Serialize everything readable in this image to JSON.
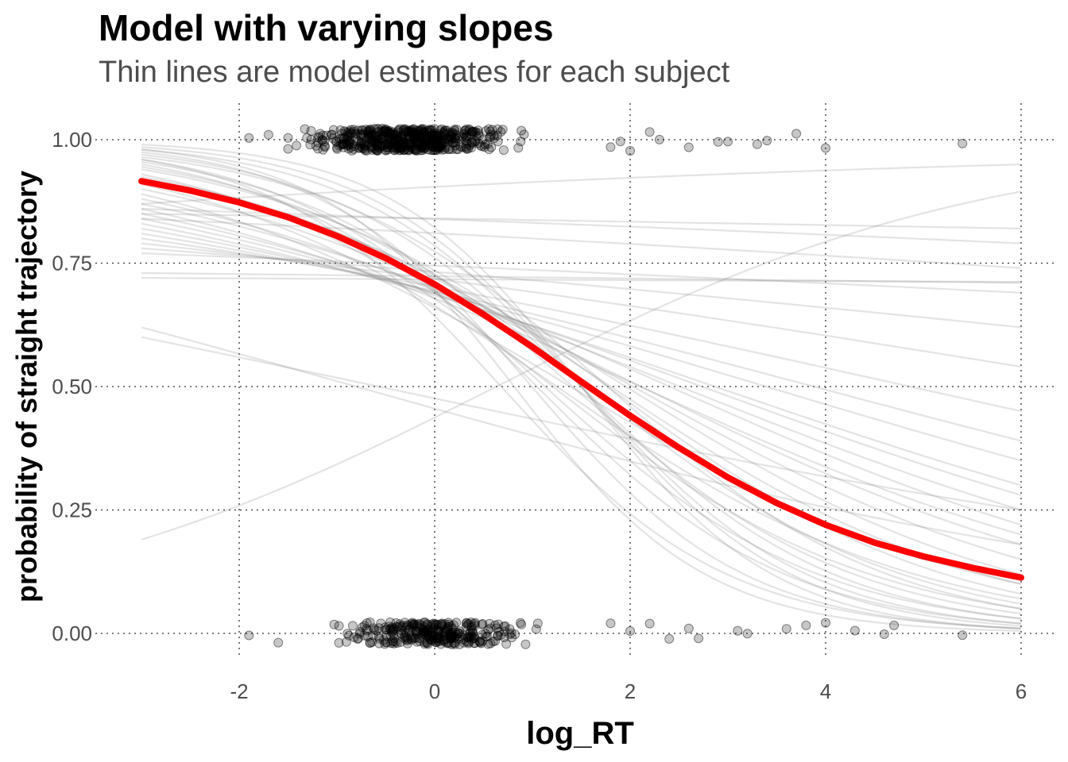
{
  "chart_data": {
    "type": "line",
    "title": "Model with varying slopes",
    "subtitle": "Thin lines are model estimates for each subject",
    "xlabel": "log_RT",
    "ylabel": "probability of straight trajectory",
    "xlim": [
      -3,
      6
    ],
    "ylim": [
      -0.03,
      1.04
    ],
    "xticks": [
      -2,
      0,
      2,
      4,
      6
    ],
    "yticks": [
      0.0,
      0.25,
      0.5,
      0.75,
      1.0
    ],
    "ytick_labels": [
      "0.00",
      "0.25",
      "0.50",
      "0.75",
      "1.00"
    ],
    "grid": "dotted",
    "population_curve": {
      "color": "#ff0000",
      "x": [
        -3,
        -2.5,
        -2,
        -1.5,
        -1,
        -0.5,
        0,
        0.5,
        1,
        1.5,
        2,
        2.5,
        3,
        3.5,
        4,
        4.5,
        5,
        5.5,
        6
      ],
      "y": [
        0.916,
        0.897,
        0.873,
        0.843,
        0.805,
        0.76,
        0.707,
        0.646,
        0.58,
        0.51,
        0.441,
        0.376,
        0.316,
        0.264,
        0.22,
        0.184,
        0.156,
        0.133,
        0.113
      ]
    },
    "subject_curves": {
      "color": "#808080",
      "x_range": [
        -3,
        6
      ],
      "endpoints": [
        [
          0.99,
          0.01
        ],
        [
          0.985,
          0.015
        ],
        [
          0.98,
          0.02
        ],
        [
          0.975,
          0.01
        ],
        [
          0.97,
          0.03
        ],
        [
          0.965,
          0.05
        ],
        [
          0.96,
          0.02
        ],
        [
          0.955,
          0.04
        ],
        [
          0.95,
          0.03
        ],
        [
          0.945,
          0.06
        ],
        [
          0.94,
          0.08
        ],
        [
          0.93,
          0.05
        ],
        [
          0.925,
          0.1
        ],
        [
          0.92,
          0.12
        ],
        [
          0.91,
          0.07
        ],
        [
          0.9,
          0.15
        ],
        [
          0.89,
          0.1
        ],
        [
          0.88,
          0.18
        ],
        [
          0.87,
          0.22
        ],
        [
          0.86,
          0.2
        ],
        [
          0.85,
          0.25
        ],
        [
          0.84,
          0.28
        ],
        [
          0.83,
          0.3
        ],
        [
          0.82,
          0.35
        ],
        [
          0.81,
          0.39
        ],
        [
          0.8,
          0.45
        ],
        [
          0.79,
          0.54
        ],
        [
          0.78,
          0.62
        ],
        [
          0.77,
          0.69
        ],
        [
          0.73,
          0.71
        ],
        [
          0.72,
          0.712
        ],
        [
          0.84,
          0.74
        ],
        [
          0.86,
          0.79
        ],
        [
          0.85,
          0.82
        ],
        [
          0.87,
          0.95
        ],
        [
          0.62,
          0.18
        ],
        [
          0.6,
          0.25
        ],
        [
          0.19,
          0.895
        ],
        [
          0.98,
          0.005
        ],
        [
          0.96,
          0.01
        ]
      ]
    },
    "observations": {
      "color": "#000000",
      "y_values": [
        0,
        1
      ],
      "dense_x_range": [
        -1.5,
        1.5
      ],
      "sparse_x_top": [
        -1.9,
        -1.7,
        1.8,
        1.9,
        2.0,
        2.2,
        2.3,
        2.6,
        2.9,
        3.0,
        3.3,
        3.4,
        3.7,
        4.0,
        5.4
      ],
      "sparse_x_bottom": [
        -1.9,
        -1.6,
        1.8,
        2.0,
        2.2,
        2.4,
        2.6,
        2.7,
        3.1,
        3.2,
        3.6,
        3.8,
        4.0,
        4.3,
        4.6,
        4.7,
        5.4
      ]
    }
  }
}
